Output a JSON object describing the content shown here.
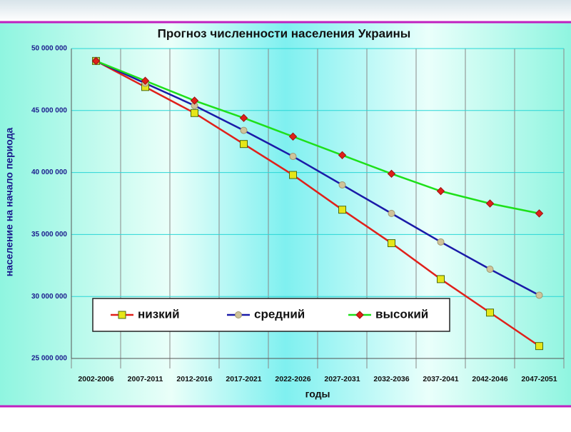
{
  "chart_data": {
    "type": "line",
    "title": "Прогноз численности населения Украины",
    "y_label": "население на начало периода",
    "x_label": "годы",
    "categories": [
      "2002-2006",
      "2007-2011",
      "2012-2016",
      "2017-2021",
      "2022-2026",
      "2027-2031",
      "2032-2036",
      "2037-2041",
      "2042-2046",
      "2047-2051"
    ],
    "series": [
      {
        "name": "низкий",
        "color": "#e0201a",
        "marker": "square",
        "marker_color": "#e6e619",
        "values": [
          49000000,
          46900000,
          44800000,
          42300000,
          39800000,
          37000000,
          34300000,
          31400000,
          28700000,
          26000000
        ]
      },
      {
        "name": "средний",
        "color": "#1a1aa8",
        "marker": "circle",
        "marker_color": "#cfc39a",
        "values": [
          49000000,
          47200000,
          45400000,
          43400000,
          41300000,
          39000000,
          36700000,
          34400000,
          32200000,
          30100000
        ]
      },
      {
        "name": "высокий",
        "color": "#1ee01a",
        "marker": "diamond",
        "marker_color": "#e0201a",
        "values": [
          49000000,
          47400000,
          45800000,
          44400000,
          42900000,
          41400000,
          39900000,
          38500000,
          37500000,
          36700000
        ]
      }
    ],
    "ylim": [
      25000000,
      50000000
    ],
    "yticks": [
      {
        "value": 25000000,
        "label": "25 000 000"
      },
      {
        "value": 30000000,
        "label": "30 000 000"
      },
      {
        "value": 35000000,
        "label": "35 000 000"
      },
      {
        "value": 40000000,
        "label": "40 000 000"
      },
      {
        "value": 45000000,
        "label": "45 000 000"
      },
      {
        "value": 50000000,
        "label": "50 000 000"
      }
    ],
    "grid": true
  }
}
